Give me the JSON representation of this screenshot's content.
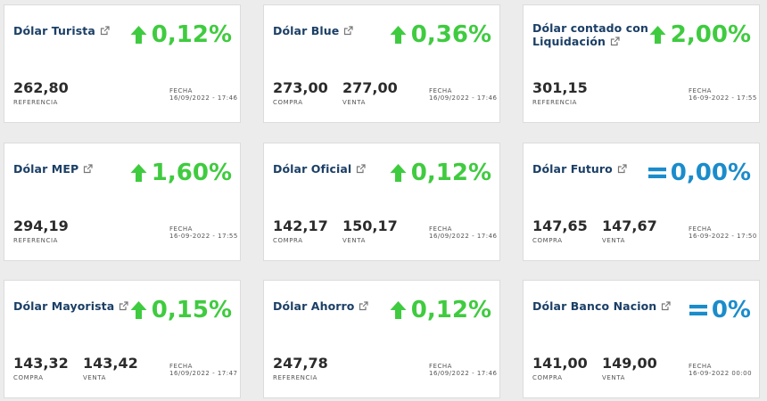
{
  "cards": [
    {
      "title": "Dólar Turista",
      "change": "0,12%",
      "trend": "up",
      "values": [
        {
          "number": "262,80",
          "label": "REFERENCIA"
        }
      ],
      "date_label": "FECHA",
      "date": "16/09/2022 - 17:46"
    },
    {
      "title": "Dólar Blue",
      "change": "0,36%",
      "trend": "up",
      "values": [
        {
          "number": "273,00",
          "label": "COMPRA"
        },
        {
          "number": "277,00",
          "label": "VENTA"
        }
      ],
      "date_label": "FECHA",
      "date": "16/09/2022 - 17:46"
    },
    {
      "title": "Dólar contado con Liquidación",
      "change": "2,00%",
      "trend": "up",
      "values": [
        {
          "number": "301,15",
          "label": "REFERENCIA"
        }
      ],
      "date_label": "FECHA",
      "date": "16-09-2022 - 17:55"
    },
    {
      "title": "Dólar MEP",
      "change": "1,60%",
      "trend": "up",
      "values": [
        {
          "number": "294,19",
          "label": "REFERENCIA"
        }
      ],
      "date_label": "FECHA",
      "date": "16-09-2022 - 17:55"
    },
    {
      "title": "Dólar Oficial",
      "change": "0,12%",
      "trend": "up",
      "values": [
        {
          "number": "142,17",
          "label": "COMPRA"
        },
        {
          "number": "150,17",
          "label": "VENTA"
        }
      ],
      "date_label": "FECHA",
      "date": "16/09/2022 - 17:46"
    },
    {
      "title": "Dólar Futuro",
      "change": "0,00%",
      "trend": "equal",
      "values": [
        {
          "number": "147,65",
          "label": "COMPRA"
        },
        {
          "number": "147,67",
          "label": "VENTA"
        }
      ],
      "date_label": "FECHA",
      "date": "16-09-2022 - 17:50"
    },
    {
      "title": "Dólar Mayorista",
      "change": "0,15%",
      "trend": "up",
      "values": [
        {
          "number": "143,32",
          "label": "COMPRA"
        },
        {
          "number": "143,42",
          "label": "VENTA"
        }
      ],
      "date_label": "FECHA",
      "date": "16/09/2022 - 17:47"
    },
    {
      "title": "Dólar Ahorro",
      "change": "0,12%",
      "trend": "up",
      "values": [
        {
          "number": "247,78",
          "label": "REFERENCIA"
        }
      ],
      "date_label": "FECHA",
      "date": "16/09/2022 - 17:46"
    },
    {
      "title": "Dólar Banco Nacion",
      "change": "0%",
      "trend": "equal",
      "values": [
        {
          "number": "141,00",
          "label": "COMPRA"
        },
        {
          "number": "149,00",
          "label": "VENTA"
        }
      ],
      "date_label": "FECHA",
      "date": "16-09-2022 00:00"
    }
  ],
  "colors": {
    "up": "#3fcb3f",
    "equal": "#1b8ccb",
    "title": "#1b3f66"
  },
  "icons": {
    "link": "external-link-icon",
    "up": "arrow-up-icon",
    "equal": "equals-icon"
  }
}
